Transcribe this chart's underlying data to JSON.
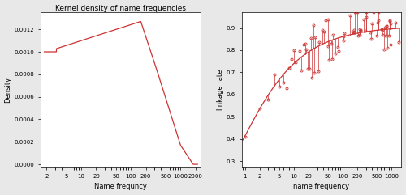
{
  "title_left": "Kernel density of name frequencies",
  "xlabel_left": "Name frequncy",
  "ylabel_left": "Density",
  "xlabel_right": "name frequency",
  "ylabel_right": "linkage rate",
  "line_color": "#cc3333",
  "left_xlim": [
    1.5,
    2500
  ],
  "left_ylim": [
    -3e-05,
    0.00135
  ],
  "right_xlim": [
    0.85,
    1600
  ],
  "right_ylim": [
    0.27,
    0.97
  ],
  "left_xticks": [
    2,
    5,
    10,
    20,
    50,
    100,
    200,
    500,
    1000,
    2000
  ],
  "left_xtick_labels": [
    "2",
    "5",
    "10",
    "20",
    "50",
    "100",
    "200",
    "500",
    "1000",
    "2000"
  ],
  "right_xticks": [
    1,
    2,
    5,
    10,
    20,
    50,
    100,
    200,
    500,
    1000
  ],
  "right_xtick_labels": [
    "1",
    "2",
    "5",
    "10",
    "20",
    "50",
    "100",
    "200",
    "500",
    "1000"
  ],
  "left_yticks": [
    0.0,
    0.0002,
    0.0004,
    0.0006,
    0.0008,
    0.001,
    0.0012
  ],
  "right_yticks": [
    0.3,
    0.4,
    0.5,
    0.6,
    0.7,
    0.8,
    0.9
  ],
  "background_color": "#ffffff",
  "fig_bg": "#e8e8e8"
}
